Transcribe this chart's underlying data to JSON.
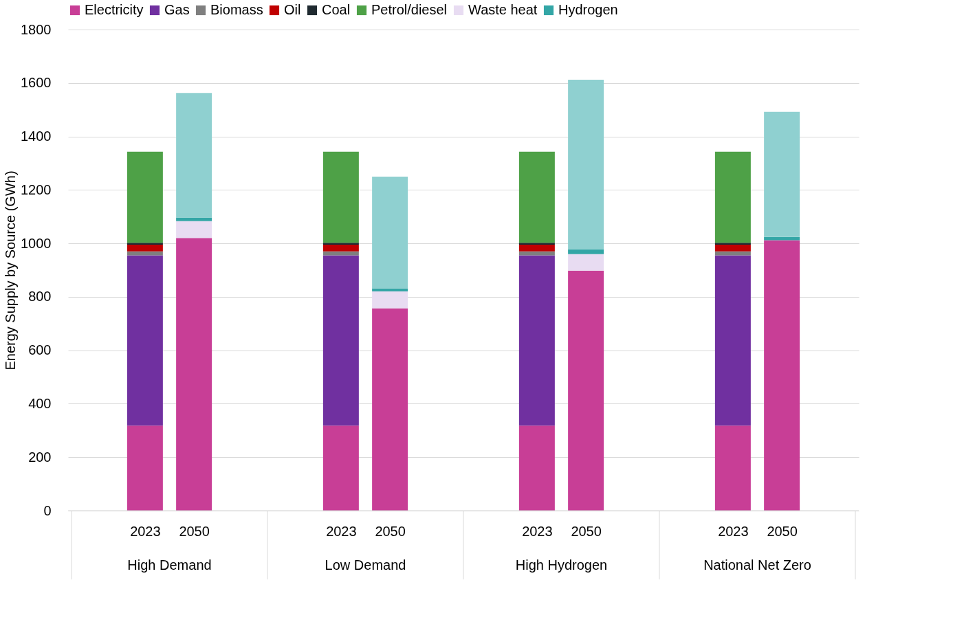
{
  "chart_data": {
    "type": "bar",
    "stacked": true,
    "ylabel": "Energy Supply by Source (GWh)",
    "categories": [
      "2023",
      "2050",
      "2023",
      "2050",
      "2023",
      "2050",
      "2023",
      "2050"
    ],
    "annotations": [
      "High Demand",
      "Low Demand",
      "High Hydrogen",
      "National Net Zero"
    ],
    "series": [
      {
        "name": "Electricity",
        "color": "#c83e96",
        "values": [
          318,
          1020,
          318,
          757,
          318,
          898,
          318,
          1012
        ]
      },
      {
        "name": "Gas",
        "color": "#7030a0",
        "values": [
          637,
          null,
          637,
          null,
          637,
          null,
          637,
          null
        ]
      },
      {
        "name": "Biomass",
        "color": "#7f7f7f",
        "values": [
          15,
          null,
          15,
          null,
          15,
          null,
          15,
          null
        ]
      },
      {
        "name": "Oil",
        "color": "#c00000",
        "values": [
          25,
          null,
          25,
          null,
          25,
          null,
          25,
          null
        ]
      },
      {
        "name": "Coal",
        "color": "#1f2a30",
        "values": [
          7,
          null,
          7,
          null,
          7,
          null,
          7,
          null
        ]
      },
      {
        "name": "Petrol/diesel",
        "color": "#4ea147",
        "values": [
          341,
          null,
          341,
          null,
          341,
          null,
          341,
          null
        ]
      },
      {
        "name": "Waste heat",
        "color": "#e8dcf2",
        "values": [
          null,
          63,
          null,
          63,
          null,
          62,
          null,
          null
        ]
      },
      {
        "name": "Hydrogen",
        "color": "#33a6a6",
        "values": [
          null,
          14,
          null,
          12,
          null,
          18,
          null,
          12
        ]
      },
      {
        "color": "#8fd0d0",
        "values": [
          null,
          466,
          null,
          418,
          null,
          634,
          null,
          468
        ]
      }
    ],
    "ylim": [
      0,
      1800
    ],
    "yticks": [
      0,
      200,
      400,
      600,
      800,
      1000,
      1200,
      1400,
      1600,
      1800
    ],
    "grid": "y",
    "legend": "top"
  }
}
